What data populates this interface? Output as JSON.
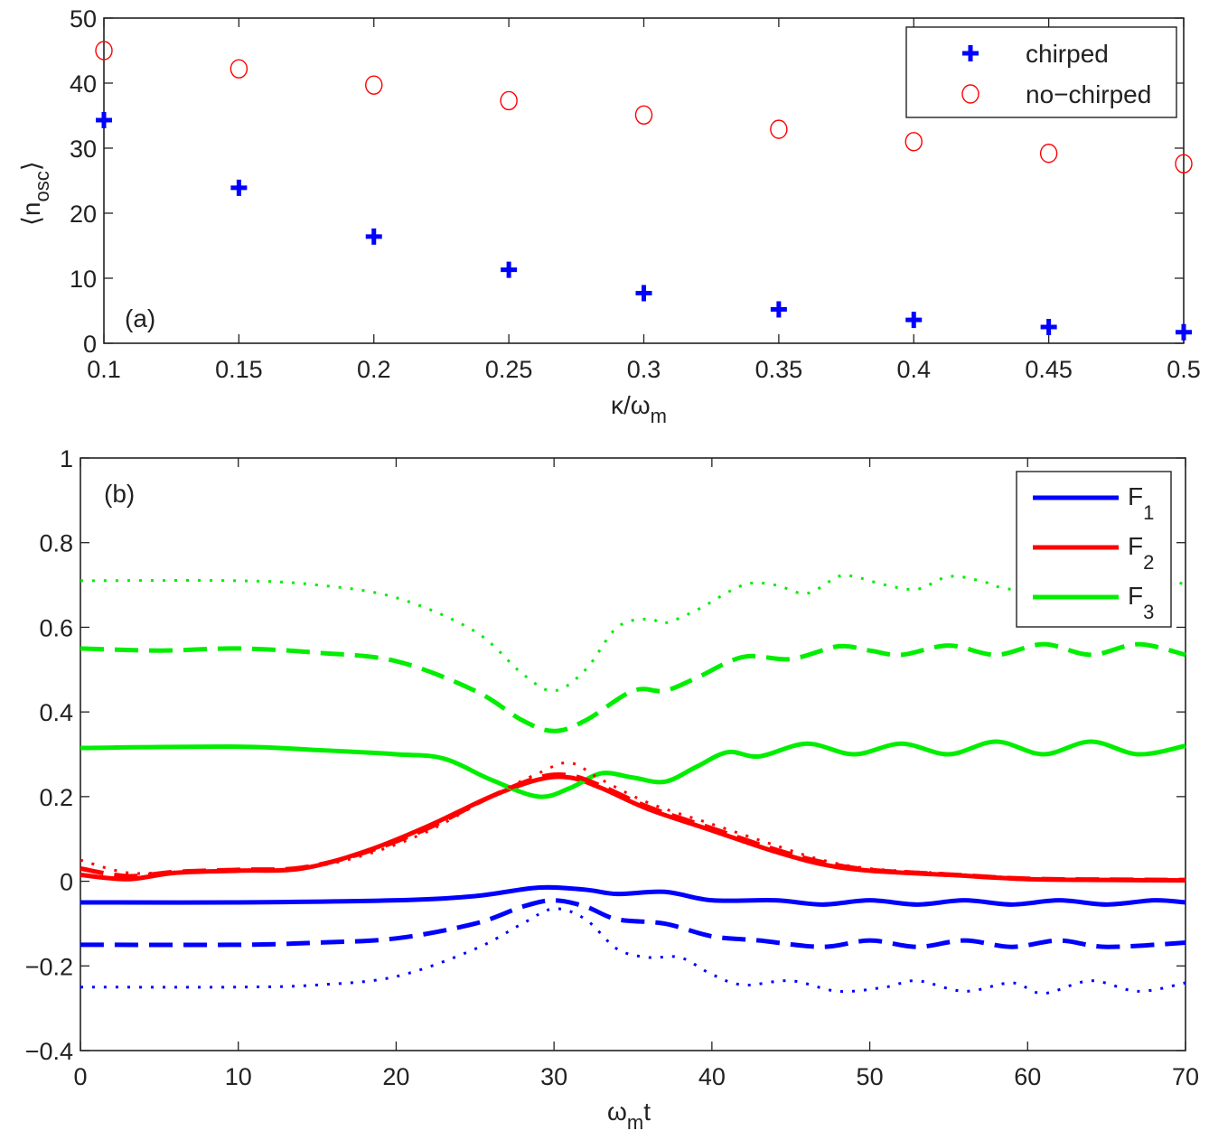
{
  "chart_data": [
    {
      "type": "scatter",
      "panel_label": "(a)",
      "xlabel": "κ/ω",
      "xlabel_sub": "m",
      "ylabel": "⟨n",
      "ylabel_sub": "osc",
      "ylabel_close": "⟩",
      "xlim": [
        0.1,
        0.5
      ],
      "ylim": [
        0,
        50
      ],
      "xticks": [
        0.1,
        0.15,
        0.2,
        0.25,
        0.3,
        0.35,
        0.4,
        0.45,
        0.5
      ],
      "xtick_labels": [
        "0.1",
        "0.15",
        "0.2",
        "0.25",
        "0.3",
        "0.35",
        "0.4",
        "0.45",
        "0.5"
      ],
      "yticks": [
        0,
        10,
        20,
        30,
        40,
        50
      ],
      "ytick_labels": [
        "0",
        "10",
        "20",
        "30",
        "40",
        "50"
      ],
      "legend_position": "top-right",
      "grid": false,
      "x": [
        0.1,
        0.15,
        0.2,
        0.25,
        0.3,
        0.35,
        0.4,
        0.45,
        0.5
      ],
      "series": [
        {
          "name": "chirped",
          "marker": "plus",
          "color": "#0000ff",
          "values": [
            34.3,
            23.9,
            16.4,
            11.3,
            7.7,
            5.2,
            3.6,
            2.5,
            1.7
          ]
        },
        {
          "name": "no−chirped",
          "marker": "circle",
          "color": "#ff0000",
          "values": [
            45.0,
            42.2,
            39.7,
            37.3,
            35.1,
            32.9,
            31.0,
            29.2,
            27.6
          ]
        }
      ]
    },
    {
      "type": "line",
      "panel_label": "(b)",
      "xlabel": "ω",
      "xlabel_sub": "m",
      "xlabel_tail": "t",
      "xlim": [
        0,
        70
      ],
      "ylim": [
        -0.4,
        1
      ],
      "xticks": [
        0,
        10,
        20,
        30,
        40,
        50,
        60,
        70
      ],
      "xtick_labels": [
        "0",
        "10",
        "20",
        "30",
        "40",
        "50",
        "60",
        "70"
      ],
      "yticks": [
        -0.4,
        -0.2,
        0,
        0.2,
        0.4,
        0.6,
        0.8,
        1
      ],
      "ytick_labels": [
        "−0.4",
        "−0.2",
        "0",
        "0.2",
        "0.4",
        "0.6",
        "0.8",
        "1"
      ],
      "legend_position": "top-right",
      "grid": false,
      "series": [
        {
          "name": "F",
          "sub": "1",
          "color": "#0000ff",
          "style": "solid",
          "points": [
            [
              0,
              -0.05
            ],
            [
              10,
              -0.05
            ],
            [
              20,
              -0.045
            ],
            [
              25,
              -0.035
            ],
            [
              29,
              -0.015
            ],
            [
              32,
              -0.02
            ],
            [
              34,
              -0.03
            ],
            [
              37,
              -0.025
            ],
            [
              40,
              -0.045
            ],
            [
              44,
              -0.045
            ],
            [
              47,
              -0.055
            ],
            [
              50,
              -0.045
            ],
            [
              53,
              -0.055
            ],
            [
              56,
              -0.045
            ],
            [
              59,
              -0.055
            ],
            [
              62,
              -0.045
            ],
            [
              65,
              -0.055
            ],
            [
              68,
              -0.045
            ],
            [
              70,
              -0.05
            ]
          ]
        },
        {
          "name": "F",
          "sub": "2",
          "color": "#ff0000",
          "style": "solid",
          "points": [
            [
              0,
              0.015
            ],
            [
              3,
              0.005
            ],
            [
              6,
              0.02
            ],
            [
              10,
              0.025
            ],
            [
              14,
              0.03
            ],
            [
              18,
              0.07
            ],
            [
              22,
              0.13
            ],
            [
              26,
              0.2
            ],
            [
              29,
              0.24
            ],
            [
              31,
              0.245
            ],
            [
              33,
              0.22
            ],
            [
              36,
              0.17
            ],
            [
              40,
              0.12
            ],
            [
              44,
              0.07
            ],
            [
              47,
              0.04
            ],
            [
              50,
              0.025
            ],
            [
              55,
              0.015
            ],
            [
              60,
              0.005
            ],
            [
              65,
              0.003
            ],
            [
              70,
              0.002
            ]
          ]
        },
        {
          "name": "F",
          "sub": "3",
          "color": "#00ee00",
          "style": "solid",
          "points": [
            [
              0,
              0.315
            ],
            [
              10,
              0.318
            ],
            [
              15,
              0.31
            ],
            [
              20,
              0.3
            ],
            [
              23,
              0.29
            ],
            [
              26,
              0.24
            ],
            [
              29,
              0.2
            ],
            [
              31,
              0.22
            ],
            [
              33,
              0.255
            ],
            [
              35,
              0.245
            ],
            [
              37,
              0.235
            ],
            [
              39,
              0.27
            ],
            [
              41,
              0.305
            ],
            [
              43,
              0.295
            ],
            [
              46,
              0.325
            ],
            [
              49,
              0.3
            ],
            [
              52,
              0.325
            ],
            [
              55,
              0.3
            ],
            [
              58,
              0.33
            ],
            [
              61,
              0.3
            ],
            [
              64,
              0.33
            ],
            [
              67,
              0.3
            ],
            [
              70,
              0.32
            ]
          ]
        },
        {
          "color": "#0000ff",
          "style": "dashed",
          "points": [
            [
              0,
              -0.15
            ],
            [
              10,
              -0.15
            ],
            [
              15,
              -0.145
            ],
            [
              20,
              -0.135
            ],
            [
              25,
              -0.1
            ],
            [
              28,
              -0.06
            ],
            [
              30,
              -0.045
            ],
            [
              32,
              -0.06
            ],
            [
              34,
              -0.09
            ],
            [
              37,
              -0.1
            ],
            [
              40,
              -0.13
            ],
            [
              43,
              -0.14
            ],
            [
              47,
              -0.155
            ],
            [
              50,
              -0.14
            ],
            [
              53,
              -0.155
            ],
            [
              56,
              -0.14
            ],
            [
              59,
              -0.155
            ],
            [
              62,
              -0.14
            ],
            [
              65,
              -0.155
            ],
            [
              70,
              -0.145
            ]
          ]
        },
        {
          "color": "#0000ff",
          "style": "dotted",
          "points": [
            [
              0,
              -0.25
            ],
            [
              10,
              -0.25
            ],
            [
              15,
              -0.245
            ],
            [
              20,
              -0.225
            ],
            [
              25,
              -0.16
            ],
            [
              28,
              -0.1
            ],
            [
              30,
              -0.065
            ],
            [
              32,
              -0.09
            ],
            [
              34,
              -0.16
            ],
            [
              36,
              -0.18
            ],
            [
              38,
              -0.18
            ],
            [
              40,
              -0.22
            ],
            [
              42,
              -0.245
            ],
            [
              45,
              -0.235
            ],
            [
              48,
              -0.26
            ],
            [
              51,
              -0.25
            ],
            [
              53,
              -0.235
            ],
            [
              56,
              -0.26
            ],
            [
              59,
              -0.24
            ],
            [
              61,
              -0.265
            ],
            [
              64,
              -0.235
            ],
            [
              67,
              -0.26
            ],
            [
              70,
              -0.24
            ]
          ]
        },
        {
          "color": "#ff0000",
          "style": "dashed",
          "points": [
            [
              0,
              0.03
            ],
            [
              3,
              0.012
            ],
            [
              6,
              0.022
            ],
            [
              10,
              0.027
            ],
            [
              14,
              0.032
            ],
            [
              18,
              0.068
            ],
            [
              22,
              0.125
            ],
            [
              26,
              0.2
            ],
            [
              29,
              0.245
            ],
            [
              31,
              0.25
            ],
            [
              33,
              0.225
            ],
            [
              36,
              0.175
            ],
            [
              40,
              0.125
            ],
            [
              44,
              0.075
            ],
            [
              47,
              0.045
            ],
            [
              50,
              0.027
            ],
            [
              55,
              0.016
            ],
            [
              60,
              0.006
            ],
            [
              65,
              0.004
            ],
            [
              70,
              0.003
            ]
          ]
        },
        {
          "color": "#ff0000",
          "style": "dotted",
          "points": [
            [
              0,
              0.05
            ],
            [
              3,
              0.02
            ],
            [
              6,
              0.022
            ],
            [
              10,
              0.024
            ],
            [
              14,
              0.03
            ],
            [
              18,
              0.062
            ],
            [
              22,
              0.118
            ],
            [
              26,
              0.2
            ],
            [
              29,
              0.255
            ],
            [
              31,
              0.28
            ],
            [
              33,
              0.24
            ],
            [
              36,
              0.185
            ],
            [
              40,
              0.135
            ],
            [
              44,
              0.085
            ],
            [
              47,
              0.05
            ],
            [
              50,
              0.03
            ],
            [
              55,
              0.018
            ],
            [
              60,
              0.007
            ],
            [
              65,
              0.004
            ],
            [
              70,
              0.003
            ]
          ]
        },
        {
          "color": "#00ee00",
          "style": "dashed",
          "points": [
            [
              0,
              0.55
            ],
            [
              5,
              0.545
            ],
            [
              10,
              0.55
            ],
            [
              15,
              0.54
            ],
            [
              20,
              0.52
            ],
            [
              25,
              0.45
            ],
            [
              28,
              0.38
            ],
            [
              30,
              0.355
            ],
            [
              32,
              0.38
            ],
            [
              35,
              0.45
            ],
            [
              37,
              0.45
            ],
            [
              39,
              0.48
            ],
            [
              42,
              0.53
            ],
            [
              45,
              0.525
            ],
            [
              48,
              0.555
            ],
            [
              50,
              0.545
            ],
            [
              52,
              0.535
            ],
            [
              55,
              0.557
            ],
            [
              58,
              0.535
            ],
            [
              61,
              0.56
            ],
            [
              64,
              0.535
            ],
            [
              67,
              0.56
            ],
            [
              70,
              0.535
            ]
          ]
        },
        {
          "color": "#00ee00",
          "style": "dotted",
          "points": [
            [
              0,
              0.71
            ],
            [
              10,
              0.71
            ],
            [
              15,
              0.7
            ],
            [
              20,
              0.67
            ],
            [
              25,
              0.59
            ],
            [
              28,
              0.49
            ],
            [
              30,
              0.45
            ],
            [
              32,
              0.5
            ],
            [
              34,
              0.6
            ],
            [
              36,
              0.62
            ],
            [
              37,
              0.61
            ],
            [
              39,
              0.64
            ],
            [
              42,
              0.7
            ],
            [
              44,
              0.7
            ],
            [
              46,
              0.68
            ],
            [
              48,
              0.72
            ],
            [
              49,
              0.72
            ],
            [
              51,
              0.7
            ],
            [
              53,
              0.69
            ],
            [
              55,
              0.72
            ],
            [
              57,
              0.71
            ],
            [
              59,
              0.69
            ],
            [
              62,
              0.71
            ],
            [
              65,
              0.69
            ],
            [
              68,
              0.72
            ],
            [
              70,
              0.7
            ]
          ]
        }
      ]
    }
  ]
}
